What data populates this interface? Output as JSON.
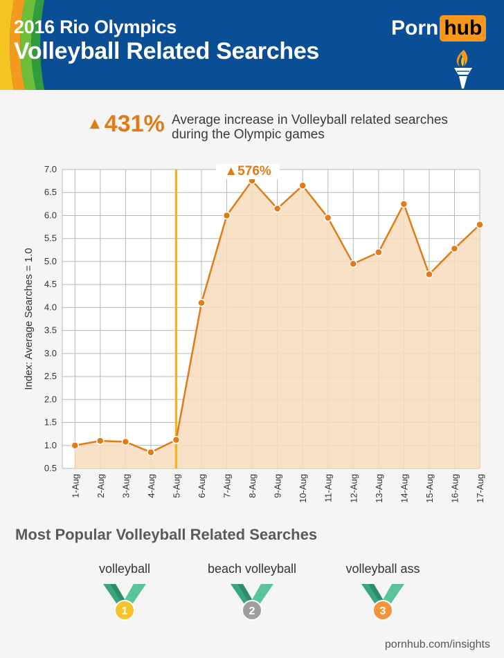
{
  "header": {
    "title_line1": "2016 Rio Olympics",
    "title_line2": "Volleyball Related Searches",
    "logo_part1": "Porn",
    "logo_part2": "hub",
    "colors": {
      "background": "#0a4f95",
      "logo_accent": "#f7971d"
    }
  },
  "stat": {
    "value": "431%",
    "description": "Average increase in Volleyball related searches during the Olympic games"
  },
  "chart_data": {
    "type": "area",
    "ylabel": "Index: Average Searches = 1.0",
    "xlabel": "",
    "title": "",
    "categories": [
      "1-Aug",
      "2-Aug",
      "3-Aug",
      "4-Aug",
      "5-Aug",
      "6-Aug",
      "7-Aug",
      "8-Aug",
      "9-Aug",
      "10-Aug",
      "11-Aug",
      "12-Aug",
      "13-Aug",
      "14-Aug",
      "15-Aug",
      "16-Aug",
      "17-Aug"
    ],
    "values": [
      1.0,
      1.1,
      1.08,
      0.85,
      1.12,
      4.1,
      6.0,
      6.76,
      6.15,
      6.65,
      5.95,
      4.95,
      5.2,
      6.25,
      4.72,
      5.28,
      5.8
    ],
    "ylim": [
      0.5,
      7.0
    ],
    "yticks": [
      "0.5",
      "1.0",
      "1.5",
      "2.0",
      "2.5",
      "3.0",
      "3.5",
      "4.0",
      "4.5",
      "5.0",
      "5.5",
      "6.0",
      "6.5",
      "7.0"
    ],
    "grid": true,
    "marker_line_category": "5-Aug",
    "peak_annotation": {
      "category": "8-Aug",
      "text": "576%"
    },
    "colors": {
      "line": "#e07b16",
      "fill": "#f7dcbd",
      "marker_line": "#f6b51b"
    }
  },
  "popular": {
    "title": "Most Popular Volleyball Related Searches",
    "items": [
      {
        "rank": "1",
        "label": "volleyball",
        "medal_color": "#f6c42a"
      },
      {
        "rank": "2",
        "label": "beach volleyball",
        "medal_color": "#9e9e9e"
      },
      {
        "rank": "3",
        "label": "volleyball ass",
        "medal_color": "#f4943a"
      }
    ]
  },
  "footer": {
    "text": "pornhub.com/insights"
  }
}
